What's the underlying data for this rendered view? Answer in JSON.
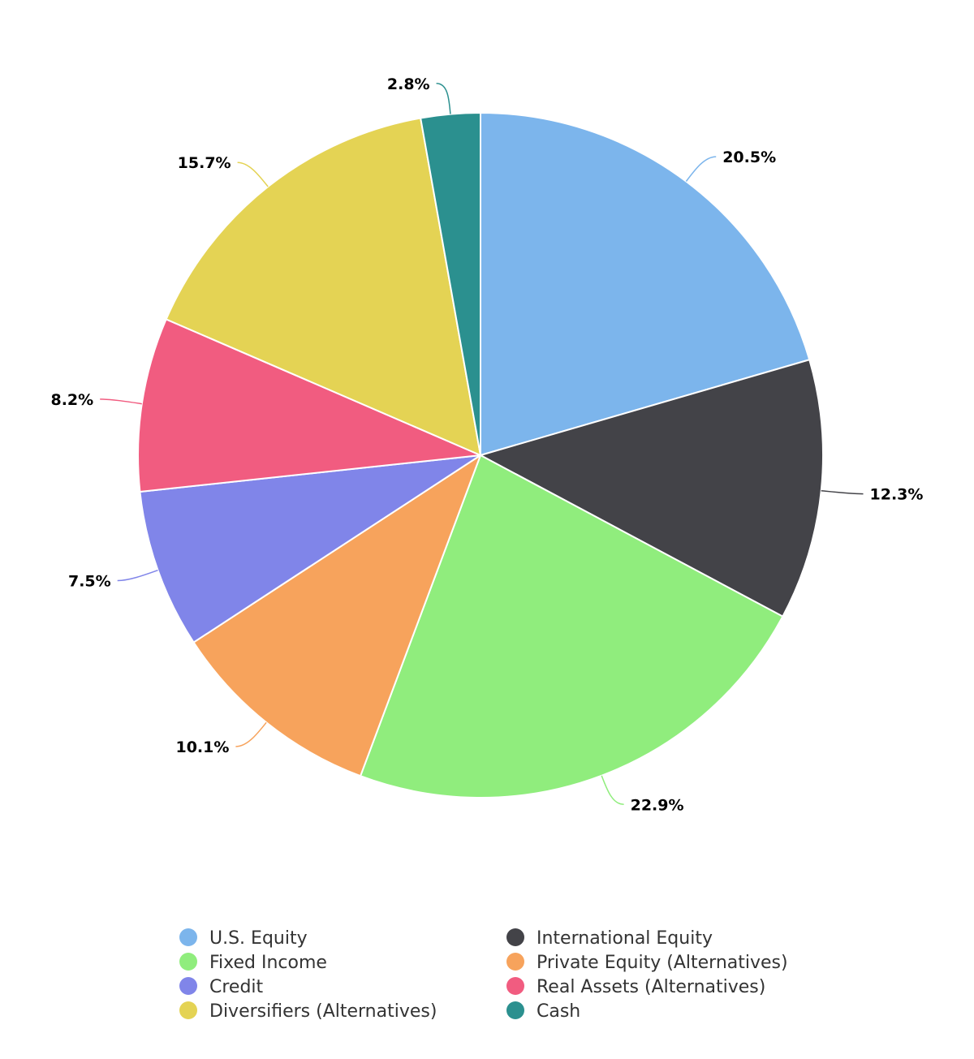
{
  "chart_data": {
    "type": "pie",
    "title": "",
    "slices": [
      {
        "name": "U.S. Equity",
        "value": 20.5,
        "label": "20.5%",
        "color": "#7cb5ec"
      },
      {
        "name": "International Equity",
        "value": 12.3,
        "label": "12.3%",
        "color": "#434348"
      },
      {
        "name": "Fixed Income",
        "value": 22.9,
        "label": "22.9%",
        "color": "#90ed7d"
      },
      {
        "name": "Private Equity (Alternatives)",
        "value": 10.1,
        "label": "10.1%",
        "color": "#f7a35c"
      },
      {
        "name": "Credit",
        "value": 7.5,
        "label": "7.5%",
        "color": "#8085e9"
      },
      {
        "name": "Real Assets (Alternatives)",
        "value": 8.2,
        "label": "8.2%",
        "color": "#f15c80"
      },
      {
        "name": "Diversifiers (Alternatives)",
        "value": 15.7,
        "label": "15.7%",
        "color": "#e4d354"
      },
      {
        "name": "Cash",
        "value": 2.8,
        "label": "2.8%",
        "color": "#2b908f"
      }
    ],
    "legend": {
      "placement": "bottom",
      "columns": 2
    }
  }
}
